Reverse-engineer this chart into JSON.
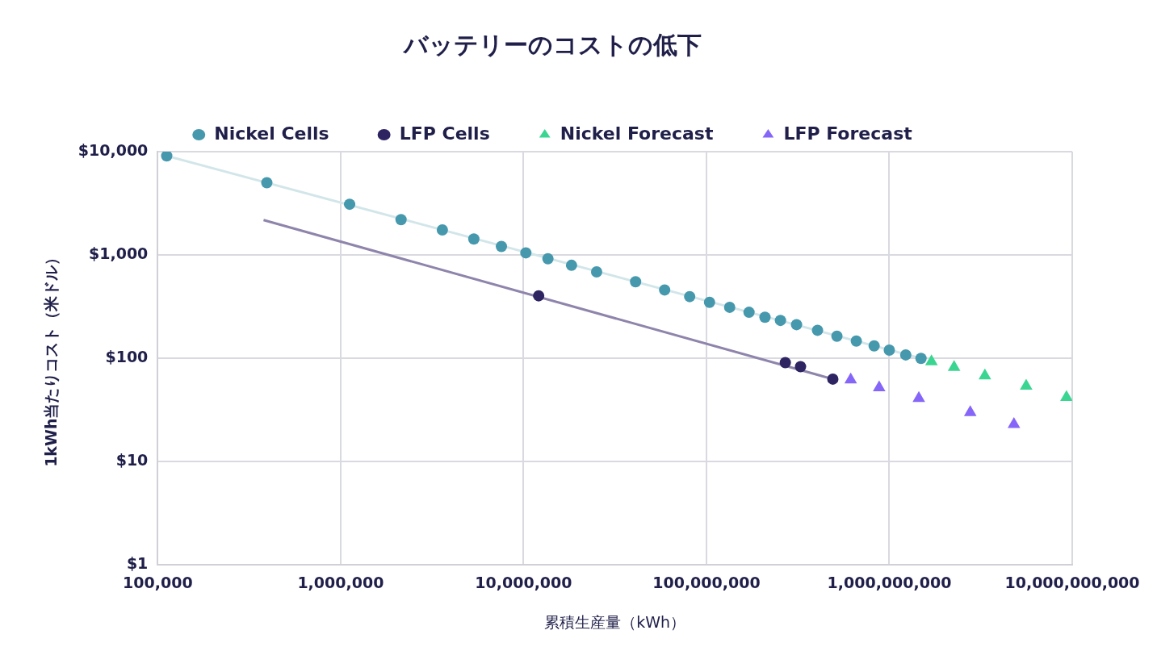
{
  "chart_data": {
    "type": "scatter",
    "title": "バッテリーのコストの低下",
    "xlabel": "累積生産量（kWh）",
    "ylabel": "1kWh当たりコスト（米ドル）",
    "log": "xy",
    "grid": true,
    "legend": "top",
    "xlim": [
      100000,
      10000000000
    ],
    "ylim": [
      1,
      10000
    ],
    "xticks": [
      {
        "value": 100000,
        "label": "100,000"
      },
      {
        "value": 1000000,
        "label": "1,000,000"
      },
      {
        "value": 10000000,
        "label": "10,000,000"
      },
      {
        "value": 100000000,
        "label": "100,000,000"
      },
      {
        "value": 1000000000,
        "label": "1,000,000,000"
      },
      {
        "value": 10000000000,
        "label": "10,000,000,000"
      }
    ],
    "yticks": [
      {
        "value": 1,
        "label": "$1"
      },
      {
        "value": 10,
        "label": "$10"
      },
      {
        "value": 100,
        "label": "$100"
      },
      {
        "value": 1000,
        "label": "$1,000"
      },
      {
        "value": 10000,
        "label": "$10,000"
      }
    ],
    "series": [
      {
        "type": "line",
        "color": "#d2e6ea",
        "marker": "none",
        "x": [
          112000,
          1490000000
        ],
        "values": [
          9100,
          100
        ]
      },
      {
        "type": "line",
        "color": "#8f84ab",
        "marker": "none",
        "x": [
          379000,
          491000000
        ],
        "values": [
          2180,
          63
        ]
      },
      {
        "name": "Nickel Cells",
        "color": "#4698ad",
        "marker": "circle",
        "x": [
          112000,
          395000,
          1120000,
          2140000,
          3600000,
          5350000,
          7570000,
          10300000,
          13600000,
          18300000,
          25100000,
          41000000,
          59100000,
          81000000,
          104000000,
          134000000,
          171000000,
          209000000,
          254000000,
          311000000,
          405000000,
          517000000,
          660000000,
          826000000,
          1000000000,
          1230000000,
          1490000000
        ],
        "values": [
          9100,
          5000,
          3100,
          2200,
          1750,
          1430,
          1210,
          1050,
          920,
          795,
          687,
          551,
          459,
          396,
          348,
          312,
          279,
          250,
          233,
          212,
          187,
          164,
          147,
          132,
          120,
          108,
          100
        ]
      },
      {
        "name": "LFP Cells",
        "color": "#2e2462",
        "marker": "circle",
        "x": [
          12100000,
          270000000,
          327000000,
          491000000
        ],
        "values": [
          403,
          91,
          83,
          63
        ]
      },
      {
        "name": "Nickel Forecast",
        "color": "#3bd592",
        "marker": "triangle",
        "x": [
          1700000000,
          2260000000,
          3330000000,
          5600000000,
          9300000000
        ],
        "values": [
          93,
          82,
          68,
          54,
          42
        ]
      },
      {
        "name": "LFP Forecast",
        "color": "#8566f8",
        "marker": "triangle",
        "x": [
          615000000,
          880000000,
          1450000000,
          2770000000,
          4800000000
        ],
        "values": [
          62,
          52,
          41,
          30,
          23
        ]
      }
    ]
  }
}
